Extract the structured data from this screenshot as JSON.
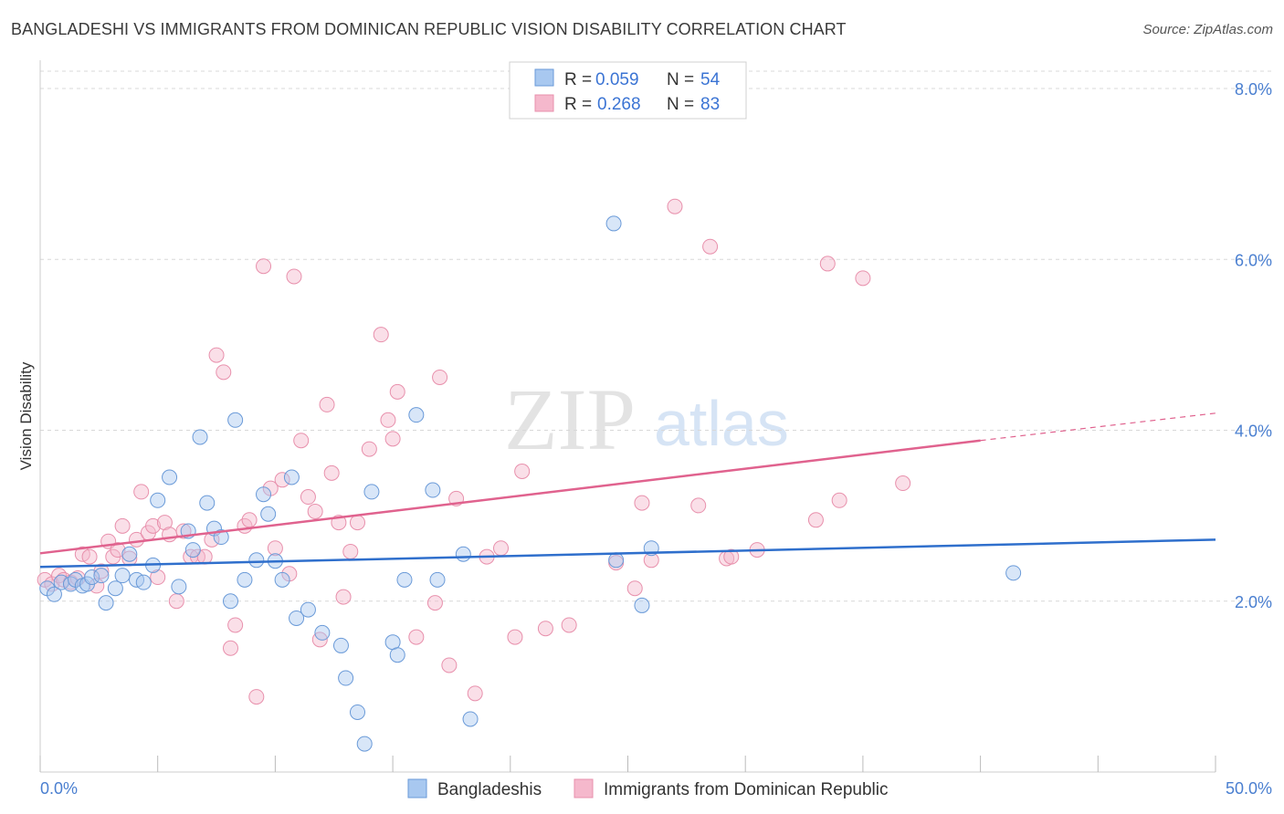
{
  "header": {
    "title": "BANGLADESHI VS IMMIGRANTS FROM DOMINICAN REPUBLIC VISION DISABILITY CORRELATION CHART",
    "source": "Source: ZipAtlas.com"
  },
  "watermark": {
    "zip": "ZIP",
    "atlas": "atlas"
  },
  "colors": {
    "blue_fill": "#a8c8f0",
    "blue_stroke": "#6a9ad8",
    "blue_line": "#2f6fcc",
    "pink_fill": "#f5b8cc",
    "pink_stroke": "#e890ac",
    "pink_line": "#e0628e",
    "tick_text": "#4a7fd0",
    "grid": "#d8d8d8"
  },
  "legend": {
    "rows": [
      {
        "r_label": "R =",
        "r_value": "0.059",
        "n_label": "N =",
        "n_value": "54",
        "color": "blue"
      },
      {
        "r_label": "R =",
        "r_value": "0.268",
        "n_label": "N =",
        "n_value": "83",
        "color": "pink"
      }
    ]
  },
  "bottom_legend": [
    {
      "label": "Bangladeshis",
      "color": "blue"
    },
    {
      "label": "Immigrants from Dominican Republic",
      "color": "pink"
    }
  ],
  "chart_data": {
    "type": "scatter",
    "title": "BANGLADESHI VS IMMIGRANTS FROM DOMINICAN REPUBLIC VISION DISABILITY CORRELATION CHART",
    "xlabel": "",
    "ylabel": "Vision Disability",
    "xlim": [
      0,
      50
    ],
    "ylim": [
      0,
      8
    ],
    "x_tick_labels": [
      "0.0%",
      "50.0%"
    ],
    "y_ticks": [
      2,
      4,
      6,
      8
    ],
    "y_tick_labels": [
      "2.0%",
      "4.0%",
      "6.0%",
      "8.0%"
    ],
    "grid": "horizontal dashed",
    "legend_position": "top-center",
    "series": [
      {
        "name": "Bangladeshis",
        "color": "blue",
        "trend": {
          "x": [
            0,
            50
          ],
          "y": [
            2.4,
            2.72
          ]
        },
        "points": [
          [
            0.3,
            2.15
          ],
          [
            0.6,
            2.08
          ],
          [
            0.9,
            2.22
          ],
          [
            1.3,
            2.2
          ],
          [
            1.5,
            2.25
          ],
          [
            1.8,
            2.18
          ],
          [
            2.0,
            2.2
          ],
          [
            2.2,
            2.28
          ],
          [
            2.6,
            2.3
          ],
          [
            2.8,
            1.98
          ],
          [
            3.2,
            2.15
          ],
          [
            3.5,
            2.3
          ],
          [
            3.8,
            2.55
          ],
          [
            4.1,
            2.25
          ],
          [
            4.4,
            2.22
          ],
          [
            4.8,
            2.42
          ],
          [
            5.0,
            3.18
          ],
          [
            5.5,
            3.45
          ],
          [
            5.9,
            2.17
          ],
          [
            6.3,
            2.82
          ],
          [
            6.5,
            2.6
          ],
          [
            6.8,
            3.92
          ],
          [
            7.1,
            3.15
          ],
          [
            7.4,
            2.85
          ],
          [
            7.7,
            2.75
          ],
          [
            8.1,
            2.0
          ],
          [
            8.3,
            4.12
          ],
          [
            8.7,
            2.25
          ],
          [
            9.2,
            2.48
          ],
          [
            9.5,
            3.25
          ],
          [
            9.7,
            3.02
          ],
          [
            10.0,
            2.47
          ],
          [
            10.3,
            2.25
          ],
          [
            10.7,
            3.45
          ],
          [
            10.9,
            1.8
          ],
          [
            11.4,
            1.9
          ],
          [
            12.0,
            1.63
          ],
          [
            12.8,
            1.48
          ],
          [
            13.0,
            1.1
          ],
          [
            13.5,
            0.7
          ],
          [
            13.8,
            0.33
          ],
          [
            14.1,
            3.28
          ],
          [
            15.0,
            1.52
          ],
          [
            15.2,
            1.37
          ],
          [
            15.5,
            2.25
          ],
          [
            16.0,
            4.18
          ],
          [
            16.7,
            3.3
          ],
          [
            16.9,
            2.25
          ],
          [
            18.0,
            2.55
          ],
          [
            18.3,
            0.62
          ],
          [
            24.4,
            6.42
          ],
          [
            24.5,
            2.48
          ],
          [
            25.6,
            1.95
          ],
          [
            26.0,
            2.62
          ],
          [
            41.4,
            2.33
          ]
        ]
      },
      {
        "name": "Immigrants from Dominican Republic",
        "color": "pink",
        "trend": {
          "x": [
            0,
            40
          ],
          "y": [
            2.56,
            3.88
          ]
        },
        "trend_dashed": {
          "x": [
            40,
            50
          ],
          "y": [
            3.88,
            4.2
          ]
        },
        "points": [
          [
            0.2,
            2.25
          ],
          [
            0.5,
            2.2
          ],
          [
            0.8,
            2.3
          ],
          [
            1.0,
            2.25
          ],
          [
            1.3,
            2.22
          ],
          [
            1.6,
            2.27
          ],
          [
            1.8,
            2.55
          ],
          [
            2.1,
            2.52
          ],
          [
            2.4,
            2.18
          ],
          [
            2.6,
            2.35
          ],
          [
            2.9,
            2.7
          ],
          [
            3.1,
            2.52
          ],
          [
            3.3,
            2.6
          ],
          [
            3.5,
            2.88
          ],
          [
            3.8,
            2.5
          ],
          [
            4.1,
            2.72
          ],
          [
            4.3,
            3.28
          ],
          [
            4.6,
            2.8
          ],
          [
            4.8,
            2.88
          ],
          [
            5.0,
            2.28
          ],
          [
            5.3,
            2.92
          ],
          [
            5.5,
            2.78
          ],
          [
            5.8,
            2.0
          ],
          [
            6.1,
            2.82
          ],
          [
            6.4,
            2.52
          ],
          [
            6.7,
            2.52
          ],
          [
            7.0,
            2.52
          ],
          [
            7.3,
            2.72
          ],
          [
            7.5,
            4.88
          ],
          [
            7.8,
            4.68
          ],
          [
            8.1,
            1.45
          ],
          [
            8.3,
            1.72
          ],
          [
            8.7,
            2.88
          ],
          [
            8.9,
            2.95
          ],
          [
            9.2,
            0.88
          ],
          [
            9.5,
            5.92
          ],
          [
            9.8,
            3.32
          ],
          [
            10.0,
            2.62
          ],
          [
            10.3,
            3.42
          ],
          [
            10.6,
            2.32
          ],
          [
            10.8,
            5.8
          ],
          [
            11.1,
            3.88
          ],
          [
            11.4,
            3.22
          ],
          [
            11.7,
            3.05
          ],
          [
            11.9,
            1.55
          ],
          [
            12.2,
            4.3
          ],
          [
            12.4,
            3.5
          ],
          [
            12.7,
            2.92
          ],
          [
            12.9,
            2.05
          ],
          [
            13.2,
            2.58
          ],
          [
            13.5,
            2.92
          ],
          [
            14.0,
            3.78
          ],
          [
            14.5,
            5.12
          ],
          [
            14.8,
            4.12
          ],
          [
            15.0,
            3.9
          ],
          [
            15.2,
            4.45
          ],
          [
            16.0,
            1.58
          ],
          [
            16.8,
            1.98
          ],
          [
            17.0,
            4.62
          ],
          [
            17.4,
            1.25
          ],
          [
            17.7,
            3.2
          ],
          [
            18.5,
            0.92
          ],
          [
            19.0,
            2.52
          ],
          [
            19.6,
            2.62
          ],
          [
            20.2,
            1.58
          ],
          [
            20.5,
            3.52
          ],
          [
            21.5,
            1.68
          ],
          [
            22.5,
            1.72
          ],
          [
            24.5,
            2.45
          ],
          [
            25.3,
            2.15
          ],
          [
            25.6,
            3.15
          ],
          [
            26.0,
            2.48
          ],
          [
            27.0,
            6.62
          ],
          [
            28.0,
            3.12
          ],
          [
            28.5,
            6.15
          ],
          [
            29.2,
            2.5
          ],
          [
            29.4,
            2.52
          ],
          [
            30.5,
            2.6
          ],
          [
            33.0,
            2.95
          ],
          [
            33.5,
            5.95
          ],
          [
            34.0,
            3.18
          ],
          [
            35.0,
            5.78
          ],
          [
            36.7,
            3.38
          ]
        ]
      }
    ]
  }
}
